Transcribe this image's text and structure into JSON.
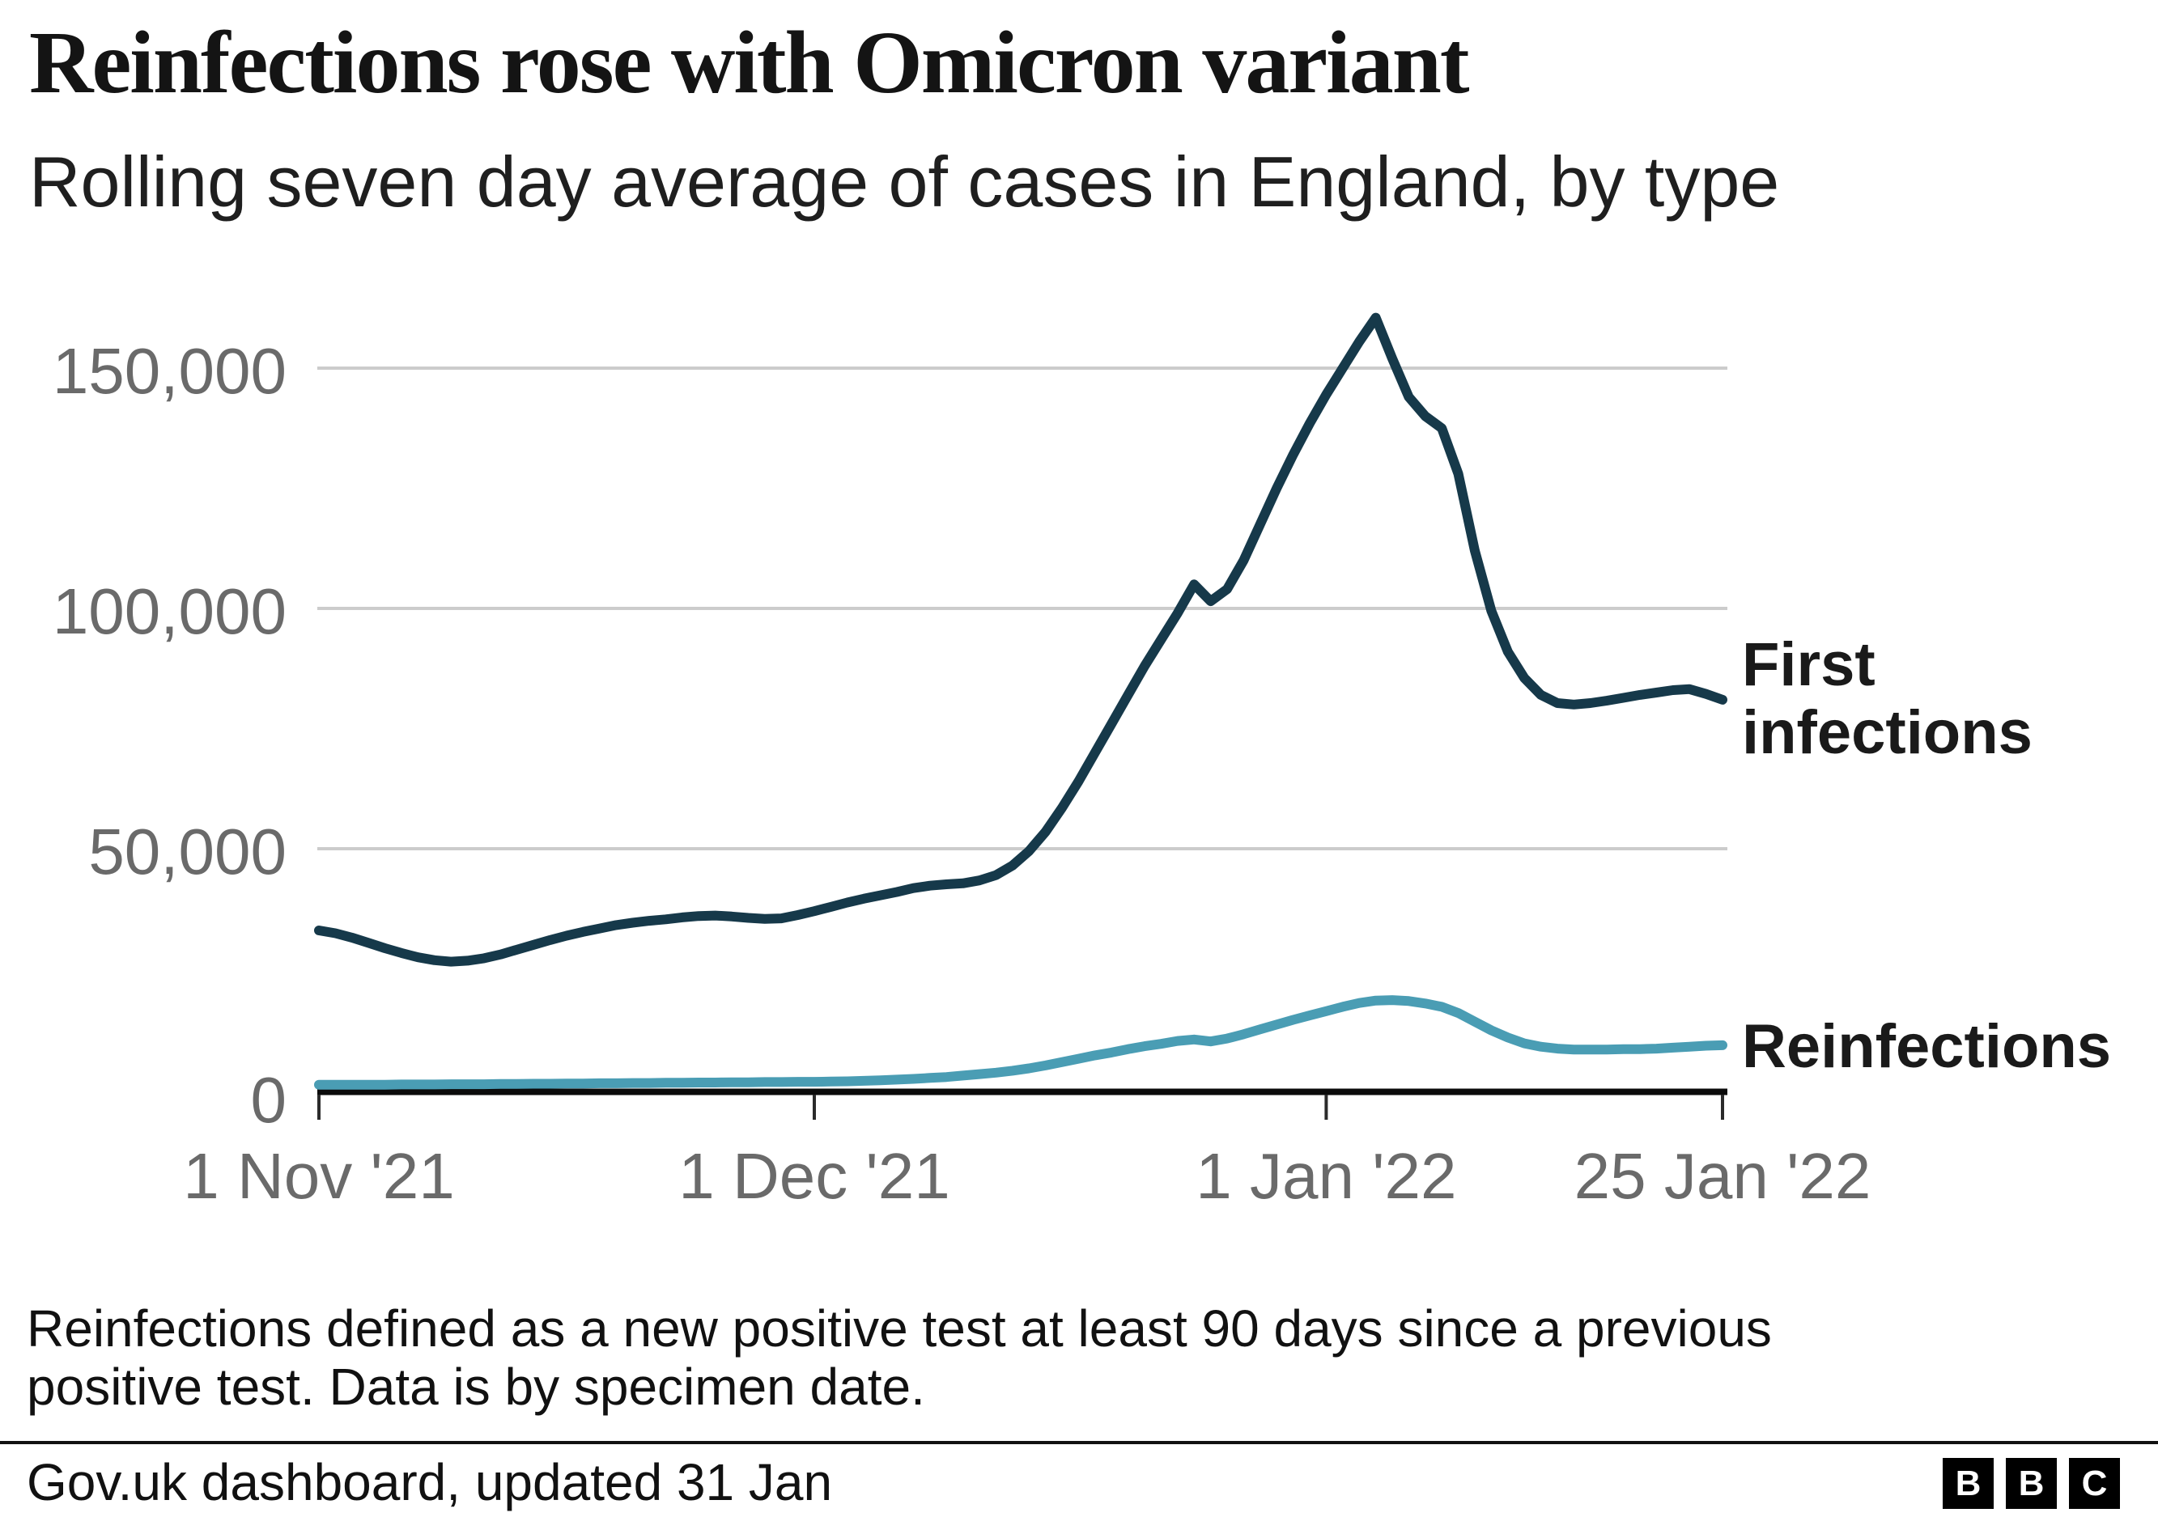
{
  "header": {
    "title": "Reinfections rose with Omicron variant",
    "subtitle": "Rolling seven day average of cases in England, by type"
  },
  "legend": {
    "first": "First infections",
    "reinfections": "Reinfections"
  },
  "footnote": {
    "line1": "Reinfections defined as a new positive test at least 90 days since a previous",
    "line2": "positive test. Data is by specimen date."
  },
  "source": {
    "text": "Gov.uk dashboard, updated 31 Jan"
  },
  "logo": {
    "letters": [
      "B",
      "B",
      "C"
    ]
  },
  "colors": {
    "first_infections": "#16394A",
    "reinfections": "#4A9DB4",
    "gridline": "#cccccc",
    "axis": "#0b0b0b",
    "tick": "#2b2b2b",
    "axis_text": "#6a6a6a"
  },
  "chart_data": {
    "type": "line",
    "title": "Reinfections rose with Omicron variant",
    "subtitle": "Rolling seven day average of cases in England, by type",
    "xlabel": "",
    "ylabel": "",
    "grid": "horizontal",
    "legend_position": "right-of-line-ends",
    "x_unit": "days from 1 Nov 2021, one value per day",
    "x_range_labels": [
      "1 Nov '21",
      "25 Jan '22"
    ],
    "x_ticks": [
      {
        "day": 0,
        "label": "1 Nov '21"
      },
      {
        "day": 30,
        "label": "1 Dec '21"
      },
      {
        "day": 61,
        "label": "1 Jan '22"
      },
      {
        "day": 85,
        "label": "25 Jan '22"
      }
    ],
    "y_ticks": [
      {
        "value": 0,
        "label": "0"
      },
      {
        "value": 50000,
        "label": "50,000"
      },
      {
        "value": 100000,
        "label": "100,000"
      },
      {
        "value": 150000,
        "label": "150,000"
      }
    ],
    "ylim": [
      0,
      167000
    ],
    "series": [
      {
        "name": "First infections",
        "color": "#16394A",
        "values": [
          33000,
          32400,
          31500,
          30400,
          29300,
          28300,
          27400,
          26800,
          26500,
          26700,
          27200,
          28000,
          29000,
          30000,
          31000,
          31900,
          32700,
          33400,
          34100,
          34600,
          35000,
          35300,
          35700,
          36000,
          36100,
          35900,
          35600,
          35400,
          35500,
          36200,
          37000,
          37900,
          38800,
          39600,
          40300,
          41000,
          41800,
          42300,
          42600,
          42800,
          43400,
          44500,
          46500,
          49500,
          53500,
          58500,
          64000,
          70000,
          76000,
          82000,
          88000,
          93500,
          99000,
          105000,
          101500,
          104000,
          110000,
          117500,
          125000,
          132000,
          138500,
          144500,
          150000,
          155500,
          160500,
          152000,
          144000,
          140000,
          137500,
          128000,
          112000,
          99500,
          91000,
          85500,
          82000,
          80300,
          80000,
          80300,
          80800,
          81400,
          82000,
          82500,
          83000,
          83200,
          82200,
          81000
        ]
      },
      {
        "name": "Reinfections",
        "color": "#4A9DB4",
        "values": [
          900,
          900,
          900,
          900,
          900,
          950,
          950,
          950,
          1000,
          1000,
          1000,
          1050,
          1050,
          1100,
          1100,
          1150,
          1150,
          1200,
          1200,
          1250,
          1250,
          1300,
          1300,
          1350,
          1350,
          1400,
          1400,
          1450,
          1450,
          1500,
          1500,
          1550,
          1600,
          1700,
          1800,
          1950,
          2100,
          2300,
          2500,
          2800,
          3100,
          3400,
          3800,
          4300,
          4900,
          5600,
          6300,
          7000,
          7600,
          8300,
          8900,
          9400,
          10000,
          10300,
          9900,
          10500,
          11400,
          12400,
          13400,
          14400,
          15300,
          16200,
          17100,
          17900,
          18400,
          18500,
          18300,
          17800,
          17100,
          15800,
          14000,
          12200,
          10700,
          9500,
          8800,
          8400,
          8200,
          8200,
          8200,
          8300,
          8300,
          8400,
          8600,
          8800,
          9000,
          9100
        ]
      }
    ]
  }
}
